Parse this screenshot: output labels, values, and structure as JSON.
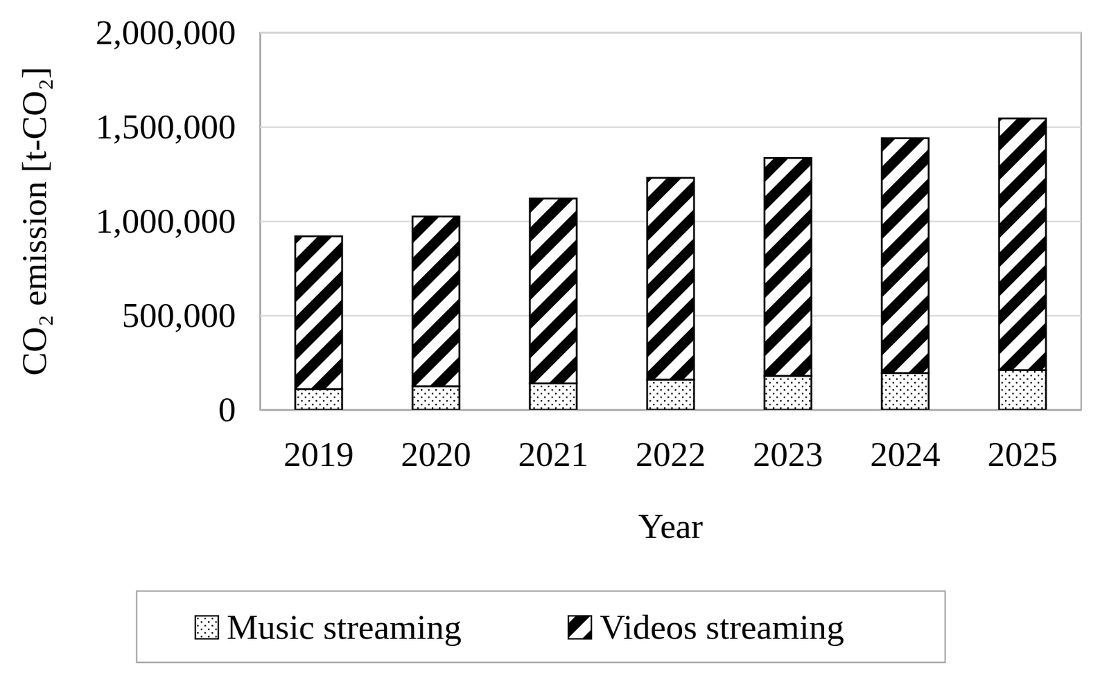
{
  "chart_data": {
    "type": "bar",
    "stacked": true,
    "grid": true,
    "legend": "bottom",
    "x_label": "Year",
    "y_label": "CO₂ emission [t-CO₂]",
    "categories": [
      "2019",
      "2020",
      "2021",
      "2022",
      "2023",
      "2024",
      "2025"
    ],
    "series": [
      {
        "name": "Music streaming",
        "color": "#000000",
        "values": [
          110000,
          125000,
          140000,
          160000,
          180000,
          195000,
          210000
        ]
      },
      {
        "name": "Videos streaming",
        "color": "#000000",
        "values": [
          810000,
          900000,
          980000,
          1070000,
          1155000,
          1245000,
          1335000
        ]
      }
    ],
    "ylim": [
      0,
      2000000
    ],
    "yticks": [
      0,
      {
        "value": 500000,
        "label": "500,000"
      },
      {
        "value": 1000000,
        "label": "1,000,000"
      },
      {
        "value": 1500000,
        "label": "1,500,000"
      },
      {
        "value": 2000000,
        "label": "2,000,000"
      }
    ]
  }
}
